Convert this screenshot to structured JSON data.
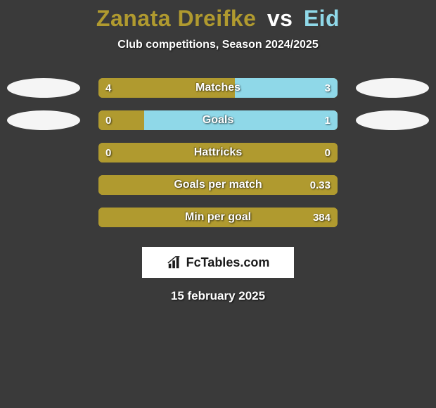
{
  "background_color": "#3a3a3a",
  "title": {
    "player1": "Zanata Dreifke",
    "vs": "vs",
    "player2": "Eid",
    "player1_color": "#b09a2f",
    "vs_color": "#ffffff",
    "player2_color": "#8fd8e8",
    "fontsize": 32
  },
  "subtitle": {
    "text": "Club competitions, Season 2024/2025",
    "color": "#ffffff",
    "fontsize": 16
  },
  "ovals": {
    "left": [
      {
        "row": 0,
        "color": "#f5f5f5"
      },
      {
        "row": 1,
        "color": "#f5f5f5"
      }
    ],
    "right": [
      {
        "row": 0,
        "color": "#f5f5f5"
      },
      {
        "row": 1,
        "color": "#f5f5f5"
      }
    ]
  },
  "player1_color": "#b09a2f",
  "player2_color": "#8fd8e8",
  "bar_radius": 6,
  "rows": [
    {
      "label": "Matches",
      "left_val": "4",
      "right_val": "3",
      "left_pct": 57,
      "right_pct": 43
    },
    {
      "label": "Goals",
      "left_val": "0",
      "right_val": "1",
      "left_pct": 19,
      "right_pct": 81
    },
    {
      "label": "Hattricks",
      "left_val": "0",
      "right_val": "0",
      "left_pct": 100,
      "right_pct": 0
    },
    {
      "label": "Goals per match",
      "left_val": "",
      "right_val": "0.33",
      "left_pct": 100,
      "right_pct": 0
    },
    {
      "label": "Min per goal",
      "left_val": "",
      "right_val": "384",
      "left_pct": 100,
      "right_pct": 0
    }
  ],
  "branding": {
    "text": "FcTables.com",
    "icon_name": "bar-chart-icon",
    "bg": "#ffffff",
    "text_color": "#1a1a1a"
  },
  "date": {
    "text": "15 february 2025",
    "color": "#ffffff"
  }
}
